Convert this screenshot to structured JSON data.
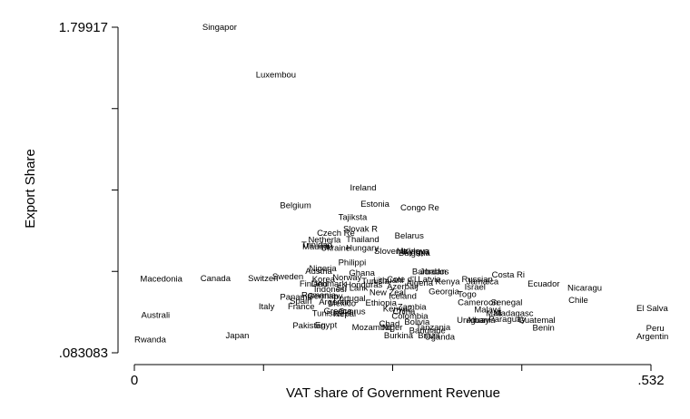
{
  "chart_data": {
    "type": "scatter",
    "xlabel": "VAT share of Government Revenue",
    "ylabel": "Export Share",
    "xlim": [
      0,
      0.532
    ],
    "ylim": [
      0.083083,
      1.79917
    ],
    "x_tick_labels": [
      {
        "value": 0,
        "label": "0"
      },
      {
        "value": 0.532,
        "label": ".532"
      }
    ],
    "y_tick_labels": [
      {
        "value": 0.083083,
        "label": ".083083"
      },
      {
        "value": 1.79917,
        "label": "1.79917"
      }
    ],
    "x_minor_ticks": [
      0,
      0.133,
      0.266,
      0.399,
      0.532
    ],
    "y_minor_ticks": [
      0.083083,
      0.512105,
      0.941126,
      1.370148,
      1.79917
    ],
    "grid": false,
    "marker": "label",
    "points": [
      {
        "label": "Singapor",
        "x": 0.07,
        "y": 1.8
      },
      {
        "label": "Luxembou",
        "x": 0.125,
        "y": 1.548
      },
      {
        "label": "Ireland",
        "x": 0.222,
        "y": 0.953
      },
      {
        "label": "Belgium",
        "x": 0.15,
        "y": 0.86
      },
      {
        "label": "Estonia",
        "x": 0.233,
        "y": 0.866
      },
      {
        "label": "Congo Re",
        "x": 0.274,
        "y": 0.847
      },
      {
        "label": "Tajiksta",
        "x": 0.21,
        "y": 0.797
      },
      {
        "label": "Slovak R",
        "x": 0.215,
        "y": 0.736
      },
      {
        "label": "Czech Re",
        "x": 0.188,
        "y": 0.714
      },
      {
        "label": "Belarus",
        "x": 0.268,
        "y": 0.699
      },
      {
        "label": "Netherla",
        "x": 0.179,
        "y": 0.678
      },
      {
        "label": "Thailand",
        "x": 0.218,
        "y": 0.68
      },
      {
        "label": "Trinidad",
        "x": 0.172,
        "y": 0.653
      },
      {
        "label": "Mauritiu",
        "x": 0.173,
        "y": 0.643
      },
      {
        "label": "Ukraine",
        "x": 0.192,
        "y": 0.634
      },
      {
        "label": "Hungary",
        "x": 0.218,
        "y": 0.634
      },
      {
        "label": "Slovenia",
        "x": 0.247,
        "y": 0.619
      },
      {
        "label": "Moldova",
        "x": 0.27,
        "y": 0.619
      },
      {
        "label": "Kyrgyz",
        "x": 0.277,
        "y": 0.617
      },
      {
        "label": "Bulgaria",
        "x": 0.272,
        "y": 0.61
      },
      {
        "label": "Philippi",
        "x": 0.21,
        "y": 0.559
      },
      {
        "label": "Nigeria",
        "x": 0.18,
        "y": 0.528
      },
      {
        "label": "Austria",
        "x": 0.176,
        "y": 0.514
      },
      {
        "label": "Ghana",
        "x": 0.221,
        "y": 0.504
      },
      {
        "label": "Barbados",
        "x": 0.286,
        "y": 0.512
      },
      {
        "label": "Jordan",
        "x": 0.294,
        "y": 0.512
      },
      {
        "label": "Costa Ri",
        "x": 0.368,
        "y": 0.494
      },
      {
        "label": "Macedonia",
        "x": 0.006,
        "y": 0.472
      },
      {
        "label": "Canada",
        "x": 0.068,
        "y": 0.476
      },
      {
        "label": "Switzerl",
        "x": 0.117,
        "y": 0.476
      },
      {
        "label": "Sweden",
        "x": 0.142,
        "y": 0.485
      },
      {
        "label": "Korea",
        "x": 0.183,
        "y": 0.471
      },
      {
        "label": "Norway",
        "x": 0.204,
        "y": 0.48
      },
      {
        "label": "Cote d'I",
        "x": 0.26,
        "y": 0.47
      },
      {
        "label": "Latvia",
        "x": 0.292,
        "y": 0.47
      },
      {
        "label": "Russian",
        "x": 0.337,
        "y": 0.47
      },
      {
        "label": "Lithuani",
        "x": 0.246,
        "y": 0.465
      },
      {
        "label": "Tunisia",
        "x": 0.234,
        "y": 0.46
      },
      {
        "label": "Finland",
        "x": 0.17,
        "y": 0.447
      },
      {
        "label": "Denmark",
        "x": 0.182,
        "y": 0.447
      },
      {
        "label": "Honduras",
        "x": 0.217,
        "y": 0.441
      },
      {
        "label": "Algeria",
        "x": 0.28,
        "y": 0.45
      },
      {
        "label": "Kenya",
        "x": 0.31,
        "y": 0.458
      },
      {
        "label": "Jamaica",
        "x": 0.342,
        "y": 0.458
      },
      {
        "label": "Ecuador",
        "x": 0.405,
        "y": 0.447
      },
      {
        "label": "Nicaragu",
        "x": 0.446,
        "y": 0.424
      },
      {
        "label": "Azerbaij",
        "x": 0.26,
        "y": 0.431
      },
      {
        "label": "Sri Lank",
        "x": 0.208,
        "y": 0.424
      },
      {
        "label": "Israel",
        "x": 0.34,
        "y": 0.429
      },
      {
        "label": "Indonesi",
        "x": 0.185,
        "y": 0.418
      },
      {
        "label": "New Zeal",
        "x": 0.242,
        "y": 0.4
      },
      {
        "label": "Georgia",
        "x": 0.303,
        "y": 0.405
      },
      {
        "label": "Togo",
        "x": 0.333,
        "y": 0.391
      },
      {
        "label": "Iceland",
        "x": 0.262,
        "y": 0.382
      },
      {
        "label": "Germany",
        "x": 0.178,
        "y": 0.381
      },
      {
        "label": "Romania",
        "x": 0.172,
        "y": 0.386
      },
      {
        "label": "Panama",
        "x": 0.15,
        "y": 0.378
      },
      {
        "label": "Portugal",
        "x": 0.205,
        "y": 0.369
      },
      {
        "label": "Cameroon",
        "x": 0.333,
        "y": 0.349
      },
      {
        "label": "Senegal",
        "x": 0.367,
        "y": 0.349
      },
      {
        "label": "Chile",
        "x": 0.447,
        "y": 0.36
      },
      {
        "label": "Spain",
        "x": 0.16,
        "y": 0.356
      },
      {
        "label": "Argentin",
        "x": 0.19,
        "y": 0.351
      },
      {
        "label": "Mexico",
        "x": 0.2,
        "y": 0.343
      },
      {
        "label": "Ethiopia",
        "x": 0.238,
        "y": 0.347
      },
      {
        "label": "Italy",
        "x": 0.128,
        "y": 0.327
      },
      {
        "label": "France",
        "x": 0.158,
        "y": 0.328
      },
      {
        "label": "El Salva",
        "x": 0.517,
        "y": 0.318
      },
      {
        "label": "Malawi",
        "x": 0.35,
        "y": 0.31
      },
      {
        "label": "Madagasc",
        "x": 0.37,
        "y": 0.291
      },
      {
        "label": "Mali",
        "x": 0.362,
        "y": 0.29
      },
      {
        "label": "Kenya2",
        "x": 0.256,
        "y": 0.316
      },
      {
        "label": "Zambia",
        "x": 0.271,
        "y": 0.324
      },
      {
        "label": "Greece",
        "x": 0.195,
        "y": 0.304
      },
      {
        "label": "Cyprus",
        "x": 0.21,
        "y": 0.3
      },
      {
        "label": "China",
        "x": 0.266,
        "y": 0.301
      },
      {
        "label": "Tunisia2",
        "x": 0.183,
        "y": 0.29
      },
      {
        "label": "Nepal",
        "x": 0.205,
        "y": 0.288
      },
      {
        "label": "Colombia",
        "x": 0.265,
        "y": 0.277
      },
      {
        "label": "Australi",
        "x": 0.007,
        "y": 0.282
      },
      {
        "label": "Uruguay",
        "x": 0.332,
        "y": 0.255
      },
      {
        "label": "Albania",
        "x": 0.342,
        "y": 0.255
      },
      {
        "label": "Paraguay",
        "x": 0.365,
        "y": 0.259
      },
      {
        "label": "Guatemal",
        "x": 0.395,
        "y": 0.255
      },
      {
        "label": "Bolivia",
        "x": 0.278,
        "y": 0.245
      },
      {
        "label": "Pakistan",
        "x": 0.163,
        "y": 0.227
      },
      {
        "label": "Egypt",
        "x": 0.186,
        "y": 0.23
      },
      {
        "label": "Chad",
        "x": 0.252,
        "y": 0.236
      },
      {
        "label": "Benin",
        "x": 0.41,
        "y": 0.215
      },
      {
        "label": "Peru",
        "x": 0.527,
        "y": 0.213
      },
      {
        "label": "Mozambiq",
        "x": 0.224,
        "y": 0.216
      },
      {
        "label": "Niger",
        "x": 0.255,
        "y": 0.216
      },
      {
        "label": "Tanzania",
        "x": 0.29,
        "y": 0.216
      },
      {
        "label": "Banglade",
        "x": 0.283,
        "y": 0.2
      },
      {
        "label": "Burkina",
        "x": 0.257,
        "y": 0.175
      },
      {
        "label": "Brazil",
        "x": 0.292,
        "y": 0.175
      },
      {
        "label": "Uganda",
        "x": 0.299,
        "y": 0.166
      },
      {
        "label": "Japan",
        "x": 0.094,
        "y": 0.174
      },
      {
        "label": "Argentin",
        "x": 0.517,
        "y": 0.17
      },
      {
        "label": "Rwanda",
        "x": 0.0,
        "y": 0.152
      }
    ]
  }
}
